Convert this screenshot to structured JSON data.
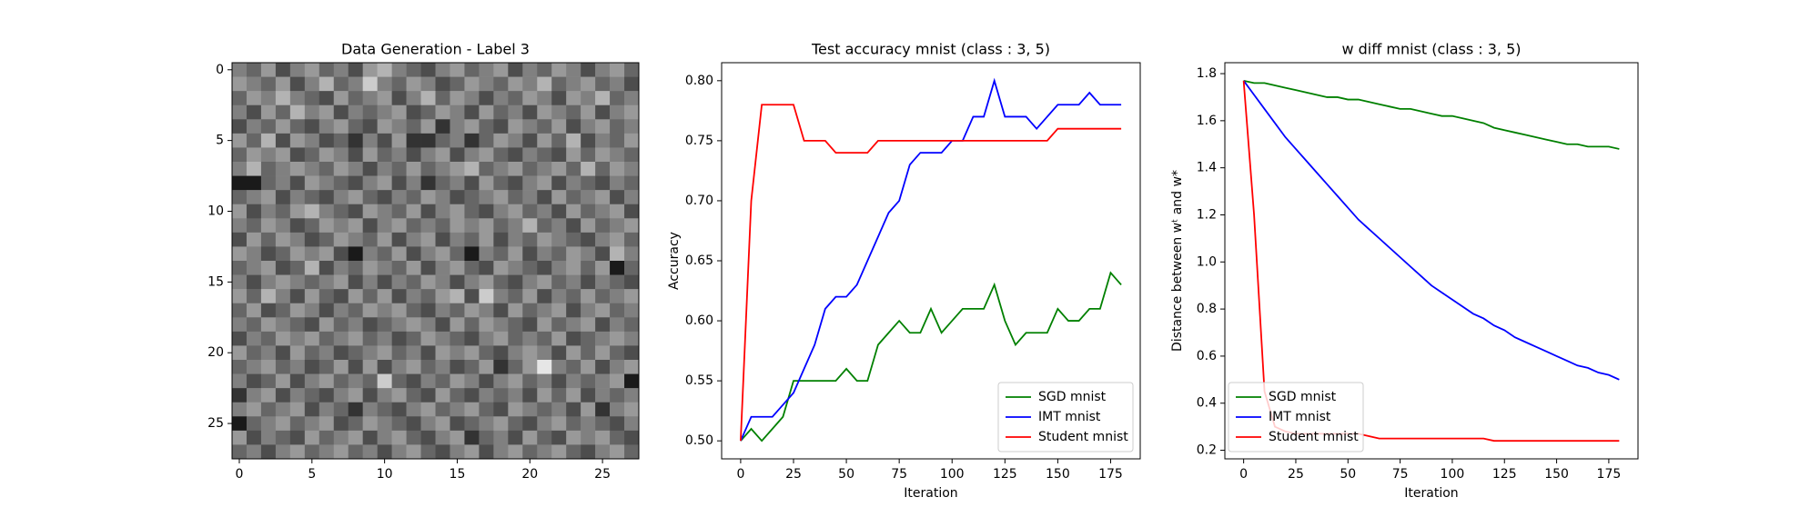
{
  "chart_data": [
    {
      "type": "heatmap",
      "title": "Data Generation - Label 3",
      "xlim": [
        -0.5,
        27.5
      ],
      "ylim": [
        27.5,
        -0.5
      ],
      "xticks": [
        0,
        5,
        10,
        15,
        20,
        25
      ],
      "yticks": [
        0,
        5,
        10,
        15,
        20,
        25
      ],
      "values": [
        [
          0.5,
          0.4,
          0.6,
          0.3,
          0.5,
          0.6,
          0.4,
          0.5,
          0.3,
          0.6,
          0.7,
          0.5,
          0.4,
          0.3,
          0.5,
          0.6,
          0.4,
          0.5,
          0.6,
          0.3,
          0.5,
          0.4,
          0.6,
          0.5,
          0.3,
          0.5,
          0.6,
          0.4
        ],
        [
          0.6,
          0.5,
          0.4,
          0.6,
          0.3,
          0.5,
          0.7,
          0.4,
          0.5,
          0.8,
          0.5,
          0.4,
          0.6,
          0.5,
          0.3,
          0.4,
          0.6,
          0.5,
          0.4,
          0.6,
          0.5,
          0.7,
          0.4,
          0.5,
          0.6,
          0.4,
          0.5,
          0.3
        ],
        [
          0.4,
          0.6,
          0.5,
          0.7,
          0.5,
          0.4,
          0.3,
          0.6,
          0.4,
          0.5,
          0.6,
          0.3,
          0.5,
          0.7,
          0.4,
          0.6,
          0.5,
          0.3,
          0.5,
          0.4,
          0.6,
          0.5,
          0.3,
          0.6,
          0.5,
          0.7,
          0.4,
          0.5
        ],
        [
          0.5,
          0.3,
          0.6,
          0.4,
          0.7,
          0.5,
          0.6,
          0.3,
          0.5,
          0.4,
          0.5,
          0.6,
          0.3,
          0.4,
          0.6,
          0.5,
          0.3,
          0.6,
          0.4,
          0.5,
          0.3,
          0.6,
          0.5,
          0.4,
          0.6,
          0.3,
          0.5,
          0.6
        ],
        [
          0.3,
          0.5,
          0.4,
          0.6,
          0.4,
          0.3,
          0.5,
          0.6,
          0.4,
          0.3,
          0.6,
          0.5,
          0.4,
          0.6,
          0.2,
          0.5,
          0.6,
          0.4,
          0.3,
          0.6,
          0.5,
          0.4,
          0.6,
          0.3,
          0.5,
          0.6,
          0.4,
          0.5
        ],
        [
          0.6,
          0.4,
          0.7,
          0.3,
          0.6,
          0.5,
          0.3,
          0.4,
          0.2,
          0.5,
          0.3,
          0.6,
          0.2,
          0.2,
          0.4,
          0.5,
          0.2,
          0.4,
          0.6,
          0.5,
          0.3,
          0.6,
          0.4,
          0.7,
          0.3,
          0.5,
          0.4,
          0.6
        ],
        [
          0.4,
          0.6,
          0.5,
          0.6,
          0.3,
          0.4,
          0.6,
          0.5,
          0.3,
          0.6,
          0.4,
          0.5,
          0.3,
          0.5,
          0.6,
          0.3,
          0.5,
          0.6,
          0.4,
          0.3,
          0.5,
          0.4,
          0.3,
          0.6,
          0.4,
          0.6,
          0.5,
          0.4
        ],
        [
          0.5,
          0.7,
          0.4,
          0.5,
          0.6,
          0.5,
          0.4,
          0.6,
          0.5,
          0.3,
          0.5,
          0.4,
          0.6,
          0.4,
          0.5,
          0.6,
          0.7,
          0.4,
          0.5,
          0.6,
          0.4,
          0.5,
          0.6,
          0.4,
          0.7,
          0.4,
          0.6,
          0.5
        ],
        [
          0.1,
          0.1,
          0.4,
          0.5,
          0.3,
          0.6,
          0.5,
          0.4,
          0.3,
          0.5,
          0.6,
          0.3,
          0.5,
          0.2,
          0.4,
          0.5,
          0.3,
          0.6,
          0.4,
          0.3,
          0.5,
          0.6,
          0.3,
          0.5,
          0.4,
          0.3,
          0.5,
          0.4
        ],
        [
          0.4,
          0.5,
          0.6,
          0.3,
          0.5,
          0.4,
          0.3,
          0.5,
          0.6,
          0.4,
          0.3,
          0.5,
          0.4,
          0.6,
          0.5,
          0.3,
          0.4,
          0.5,
          0.6,
          0.4,
          0.5,
          0.3,
          0.6,
          0.4,
          0.5,
          0.6,
          0.3,
          0.5
        ],
        [
          0.6,
          0.3,
          0.5,
          0.4,
          0.6,
          0.7,
          0.5,
          0.4,
          0.3,
          0.6,
          0.5,
          0.4,
          0.6,
          0.3,
          0.5,
          0.6,
          0.4,
          0.3,
          0.5,
          0.6,
          0.4,
          0.5,
          0.3,
          0.6,
          0.4,
          0.5,
          0.6,
          0.3
        ],
        [
          0.5,
          0.4,
          0.6,
          0.5,
          0.3,
          0.4,
          0.6,
          0.5,
          0.6,
          0.3,
          0.5,
          0.6,
          0.4,
          0.5,
          0.4,
          0.6,
          0.5,
          0.6,
          0.4,
          0.5,
          0.7,
          0.4,
          0.5,
          0.3,
          0.6,
          0.4,
          0.5,
          0.6
        ],
        [
          0.3,
          0.6,
          0.4,
          0.6,
          0.5,
          0.3,
          0.4,
          0.6,
          0.5,
          0.4,
          0.6,
          0.3,
          0.5,
          0.6,
          0.3,
          0.5,
          0.4,
          0.6,
          0.3,
          0.5,
          0.4,
          0.6,
          0.5,
          0.4,
          0.3,
          0.5,
          0.6,
          0.4
        ],
        [
          0.6,
          0.5,
          0.3,
          0.4,
          0.6,
          0.5,
          0.6,
          0.3,
          0.1,
          0.5,
          0.4,
          0.6,
          0.3,
          0.5,
          0.6,
          0.4,
          0.1,
          0.5,
          0.4,
          0.6,
          0.3,
          0.5,
          0.4,
          0.6,
          0.5,
          0.3,
          0.7,
          0.5
        ],
        [
          0.4,
          0.5,
          0.6,
          0.3,
          0.4,
          0.7,
          0.3,
          0.5,
          0.4,
          0.6,
          0.5,
          0.4,
          0.6,
          0.3,
          0.5,
          0.6,
          0.4,
          0.3,
          0.6,
          0.5,
          0.4,
          0.3,
          0.5,
          0.6,
          0.4,
          0.6,
          0.1,
          0.4
        ],
        [
          0.5,
          0.3,
          0.5,
          0.6,
          0.5,
          0.4,
          0.5,
          0.6,
          0.3,
          0.5,
          0.3,
          0.5,
          0.4,
          0.6,
          0.5,
          0.3,
          0.5,
          0.6,
          0.4,
          0.3,
          0.5,
          0.6,
          0.4,
          0.5,
          0.3,
          0.5,
          0.4,
          0.3
        ],
        [
          0.6,
          0.4,
          0.7,
          0.5,
          0.3,
          0.6,
          0.4,
          0.3,
          0.6,
          0.4,
          0.6,
          0.3,
          0.5,
          0.4,
          0.6,
          0.7,
          0.3,
          0.8,
          0.5,
          0.4,
          0.6,
          0.3,
          0.5,
          0.4,
          0.6,
          0.4,
          0.5,
          0.6
        ],
        [
          0.4,
          0.6,
          0.3,
          0.4,
          0.6,
          0.5,
          0.3,
          0.5,
          0.4,
          0.6,
          0.5,
          0.6,
          0.4,
          0.3,
          0.5,
          0.4,
          0.6,
          0.5,
          0.3,
          0.6,
          0.4,
          0.5,
          0.6,
          0.3,
          0.5,
          0.6,
          0.4,
          0.5
        ],
        [
          0.5,
          0.4,
          0.6,
          0.5,
          0.4,
          0.3,
          0.6,
          0.4,
          0.5,
          0.3,
          0.4,
          0.5,
          0.6,
          0.5,
          0.3,
          0.6,
          0.4,
          0.6,
          0.5,
          0.4,
          0.3,
          0.6,
          0.4,
          0.5,
          0.6,
          0.3,
          0.5,
          0.4
        ],
        [
          0.3,
          0.5,
          0.4,
          0.6,
          0.5,
          0.6,
          0.4,
          0.5,
          0.6,
          0.4,
          0.5,
          0.3,
          0.4,
          0.6,
          0.5,
          0.4,
          0.3,
          0.5,
          0.6,
          0.4,
          0.5,
          0.4,
          0.6,
          0.3,
          0.4,
          0.5,
          0.6,
          0.5
        ],
        [
          0.6,
          0.4,
          0.5,
          0.3,
          0.6,
          0.4,
          0.5,
          0.3,
          0.4,
          0.5,
          0.6,
          0.4,
          0.5,
          0.3,
          0.6,
          0.5,
          0.6,
          0.4,
          0.3,
          0.5,
          0.6,
          0.5,
          0.3,
          0.6,
          0.4,
          0.6,
          0.4,
          0.3
        ],
        [
          0.4,
          0.5,
          0.6,
          0.4,
          0.5,
          0.3,
          0.4,
          0.6,
          0.3,
          0.6,
          0.3,
          0.5,
          0.6,
          0.4,
          0.5,
          0.3,
          0.4,
          0.6,
          0.2,
          0.4,
          0.6,
          0.9,
          0.5,
          0.4,
          0.6,
          0.3,
          0.5,
          0.6
        ],
        [
          0.5,
          0.3,
          0.4,
          0.6,
          0.3,
          0.5,
          0.6,
          0.4,
          0.5,
          0.4,
          0.8,
          0.4,
          0.3,
          0.5,
          0.4,
          0.6,
          0.5,
          0.3,
          0.5,
          0.6,
          0.4,
          0.5,
          0.3,
          0.5,
          0.4,
          0.5,
          0.6,
          0.1
        ],
        [
          0.2,
          0.5,
          0.6,
          0.3,
          0.5,
          0.4,
          0.3,
          0.5,
          0.6,
          0.3,
          0.5,
          0.6,
          0.4,
          0.3,
          0.6,
          0.4,
          0.3,
          0.5,
          0.4,
          0.5,
          0.3,
          0.6,
          0.4,
          0.6,
          0.3,
          0.5,
          0.4,
          0.5
        ],
        [
          0.5,
          0.6,
          0.4,
          0.5,
          0.6,
          0.3,
          0.5,
          0.4,
          0.2,
          0.5,
          0.4,
          0.3,
          0.5,
          0.6,
          0.4,
          0.5,
          0.6,
          0.4,
          0.3,
          0.6,
          0.5,
          0.4,
          0.5,
          0.3,
          0.6,
          0.2,
          0.5,
          0.6
        ],
        [
          0.1,
          0.4,
          0.5,
          0.6,
          0.4,
          0.5,
          0.6,
          0.3,
          0.4,
          0.6,
          0.5,
          0.4,
          0.3,
          0.5,
          0.6,
          0.3,
          0.4,
          0.5,
          0.6,
          0.4,
          0.3,
          0.5,
          0.6,
          0.4,
          0.5,
          0.4,
          0.3,
          0.5
        ],
        [
          0.6,
          0.3,
          0.5,
          0.4,
          0.3,
          0.6,
          0.4,
          0.5,
          0.6,
          0.3,
          0.5,
          0.6,
          0.4,
          0.3,
          0.5,
          0.6,
          0.2,
          0.4,
          0.5,
          0.3,
          0.6,
          0.4,
          0.3,
          0.6,
          0.5,
          0.6,
          0.4,
          0.3
        ],
        [
          0.4,
          0.5,
          0.3,
          0.5,
          0.6,
          0.4,
          0.5,
          0.6,
          0.4,
          0.5,
          0.3,
          0.5,
          0.6,
          0.4,
          0.3,
          0.5,
          0.6,
          0.3,
          0.5,
          0.6,
          0.4,
          0.5,
          0.6,
          0.4,
          0.3,
          0.5,
          0.6,
          0.4
        ]
      ]
    },
    {
      "type": "line",
      "title": "Test accuracy mnist (class : 3, 5)",
      "xlabel": "Iteration",
      "ylabel": "Accuracy",
      "xlim": [
        -9,
        189
      ],
      "ylim": [
        0.485,
        0.815
      ],
      "xticks": [
        0,
        25,
        50,
        75,
        100,
        125,
        150,
        175
      ],
      "yticks": [
        {
          "value": 0.5,
          "label": "0.50"
        },
        0.55,
        {
          "value": 0.6,
          "label": "0.60"
        },
        0.65,
        {
          "value": 0.7,
          "label": "0.70"
        },
        0.75,
        {
          "value": 0.8,
          "label": "0.80"
        }
      ],
      "legend": "lower right",
      "x": [
        0,
        5,
        10,
        15,
        20,
        25,
        30,
        35,
        40,
        45,
        50,
        55,
        60,
        65,
        70,
        75,
        80,
        85,
        90,
        95,
        100,
        105,
        110,
        115,
        120,
        125,
        130,
        135,
        140,
        145,
        150,
        155,
        160,
        165,
        170,
        175,
        180
      ],
      "series": [
        {
          "name": "SGD mnist",
          "color": "#008000",
          "values": [
            0.5,
            0.51,
            0.5,
            0.51,
            0.52,
            0.55,
            0.55,
            0.55,
            0.55,
            0.55,
            0.56,
            0.55,
            0.55,
            0.58,
            0.59,
            0.6,
            0.59,
            0.59,
            0.61,
            0.59,
            0.6,
            0.61,
            0.61,
            0.61,
            0.63,
            0.6,
            0.58,
            0.59,
            0.59,
            0.59,
            0.61,
            0.6,
            0.6,
            0.61,
            0.61,
            0.64,
            0.63
          ]
        },
        {
          "name": "IMT mnist",
          "color": "#0000ff",
          "values": [
            0.5,
            0.52,
            0.52,
            0.52,
            0.53,
            0.54,
            0.56,
            0.58,
            0.61,
            0.62,
            0.62,
            0.63,
            0.65,
            0.67,
            0.69,
            0.7,
            0.73,
            0.74,
            0.74,
            0.74,
            0.75,
            0.75,
            0.77,
            0.77,
            0.8,
            0.77,
            0.77,
            0.77,
            0.76,
            0.77,
            0.78,
            0.78,
            0.78,
            0.79,
            0.78,
            0.78,
            0.78
          ]
        },
        {
          "name": "Student mnist",
          "color": "#ff0000",
          "values": [
            0.5,
            0.7,
            0.78,
            0.78,
            0.78,
            0.78,
            0.75,
            0.75,
            0.75,
            0.74,
            0.74,
            0.74,
            0.74,
            0.75,
            0.75,
            0.75,
            0.75,
            0.75,
            0.75,
            0.75,
            0.75,
            0.75,
            0.75,
            0.75,
            0.75,
            0.75,
            0.75,
            0.75,
            0.75,
            0.75,
            0.76,
            0.76,
            0.76,
            0.76,
            0.76,
            0.76,
            0.76
          ]
        }
      ]
    },
    {
      "type": "line",
      "title": "w diff mnist (class : 3, 5)",
      "xlabel": "Iteration",
      "ylabel": "Distance between wᵗ and w*",
      "xlim": [
        -9,
        189
      ],
      "ylim": [
        0.1635,
        1.8465
      ],
      "xticks": [
        0,
        25,
        50,
        75,
        100,
        125,
        150,
        175
      ],
      "yticks": [
        0.2,
        0.4,
        0.6,
        0.8,
        {
          "value": 1,
          "label": "1.0"
        },
        1.2,
        1.4,
        1.6,
        1.8
      ],
      "legend": "lower left",
      "x": [
        0,
        5,
        10,
        15,
        20,
        25,
        30,
        35,
        40,
        45,
        50,
        55,
        60,
        65,
        70,
        75,
        80,
        85,
        90,
        95,
        100,
        105,
        110,
        115,
        120,
        125,
        130,
        135,
        140,
        145,
        150,
        155,
        160,
        165,
        170,
        175,
        180
      ],
      "series": [
        {
          "name": "SGD mnist",
          "color": "#008000",
          "values": [
            1.77,
            1.76,
            1.76,
            1.75,
            1.74,
            1.73,
            1.72,
            1.71,
            1.7,
            1.7,
            1.69,
            1.69,
            1.68,
            1.67,
            1.66,
            1.65,
            1.65,
            1.64,
            1.63,
            1.62,
            1.62,
            1.61,
            1.6,
            1.59,
            1.57,
            1.56,
            1.55,
            1.54,
            1.53,
            1.52,
            1.51,
            1.5,
            1.5,
            1.49,
            1.49,
            1.49,
            1.48
          ]
        },
        {
          "name": "IMT mnist",
          "color": "#0000ff",
          "values": [
            1.77,
            1.71,
            1.65,
            1.59,
            1.53,
            1.48,
            1.43,
            1.38,
            1.33,
            1.28,
            1.23,
            1.18,
            1.14,
            1.1,
            1.06,
            1.02,
            0.98,
            0.94,
            0.9,
            0.87,
            0.84,
            0.81,
            0.78,
            0.76,
            0.73,
            0.71,
            0.68,
            0.66,
            0.64,
            0.62,
            0.6,
            0.58,
            0.56,
            0.55,
            0.53,
            0.52,
            0.5
          ]
        },
        {
          "name": "Student mnist",
          "color": "#ff0000",
          "values": [
            1.77,
            1.2,
            0.45,
            0.3,
            0.28,
            0.27,
            0.27,
            0.27,
            0.27,
            0.27,
            0.27,
            0.27,
            0.26,
            0.25,
            0.25,
            0.25,
            0.25,
            0.25,
            0.25,
            0.25,
            0.25,
            0.25,
            0.25,
            0.25,
            0.24,
            0.24,
            0.24,
            0.24,
            0.24,
            0.24,
            0.24,
            0.24,
            0.24,
            0.24,
            0.24,
            0.24,
            0.24
          ]
        }
      ]
    }
  ]
}
